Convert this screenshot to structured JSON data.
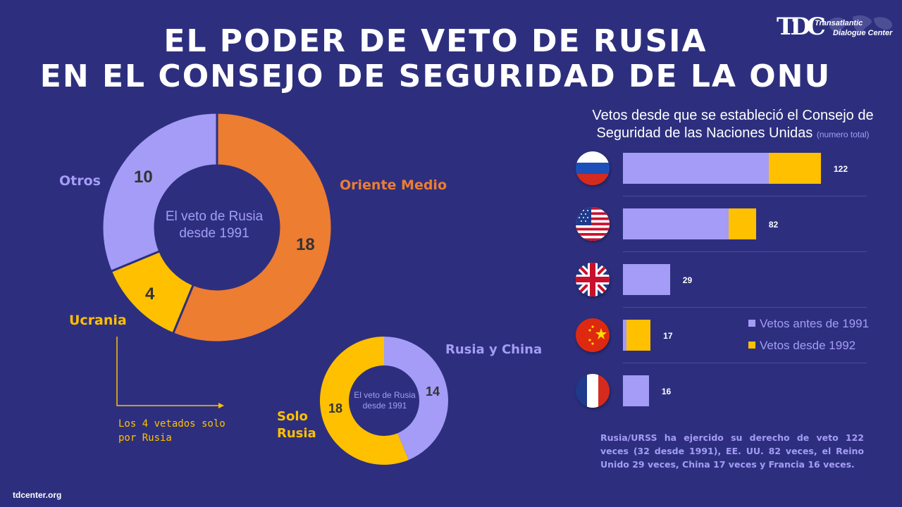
{
  "title_line1": "EL PODER DE VETO DE RUSIA",
  "title_line2": "EN EL CONSEJO DE SEGURIDAD DE LA ONU",
  "logo": {
    "mark": "TDC",
    "line1": "Transatlantic",
    "line2": "Dialogue Center"
  },
  "colors": {
    "background": "#2d2f7e",
    "lavender": "#a49cf6",
    "orange": "#ed7d31",
    "yellow": "#ffc000"
  },
  "chart_data": [
    {
      "type": "pie",
      "center_label": "El veto de Rusia desde 1991",
      "slices": [
        {
          "label": "Oriente Medio",
          "value": 18,
          "color": "#ed7d31"
        },
        {
          "label": "Ucrania",
          "value": 4,
          "color": "#ffc000"
        },
        {
          "label": "Otros",
          "value": 10,
          "color": "#a49cf6"
        }
      ],
      "annotation": "Los 4 vetados solo por Rusia"
    },
    {
      "type": "pie",
      "center_label": "El veto de Rusia desde 1991",
      "slices": [
        {
          "label": "Rusia y China",
          "value": 14,
          "color": "#a49cf6"
        },
        {
          "label": "Solo Rusia",
          "value": 18,
          "color": "#ffc000"
        }
      ]
    },
    {
      "type": "bar",
      "orientation": "horizontal",
      "stacked": true,
      "title": "Vetos desde que se estableció el Consejo de Seguridad de las Naciones Unidas",
      "subtitle": "(numero total)",
      "categories": [
        "russia-flag",
        "usa-flag",
        "uk-flag",
        "china-flag",
        "france-flag"
      ],
      "series": [
        {
          "name": "Vetos antes de 1991",
          "color": "#a49cf6",
          "values": [
            90,
            65,
            29,
            2,
            16
          ]
        },
        {
          "name": "Vetos desde 1992",
          "color": "#ffc000",
          "values": [
            32,
            17,
            0,
            15,
            0
          ]
        }
      ],
      "totals": [
        "122",
        "82",
        "29",
        "17",
        "16"
      ],
      "xlim": [
        0,
        122
      ],
      "legend_position": "right"
    }
  ],
  "footnote": "Rusia/URSS ha ejercido su derecho de veto 122 veces (32 desde 1991), EE. UU. 82 veces, el Reino Unido 29 veces, China 17 veces y Francia 16 veces.",
  "source": "tdcenter.org"
}
